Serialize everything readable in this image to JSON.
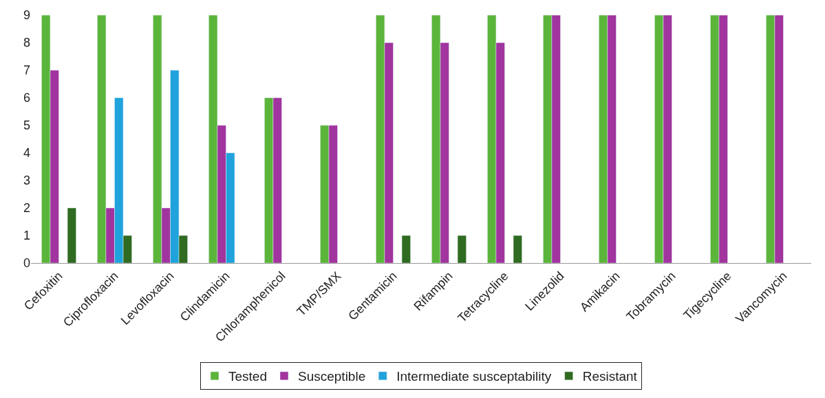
{
  "chart_data": {
    "type": "bar",
    "categories": [
      "Cefoxitin",
      "Ciprofloxacin",
      "Levofloxacin",
      "Clindamicin",
      "Chloramphenicol",
      "TMP/SMX",
      "Gentamicin",
      "Rifampin",
      "Tetracycline",
      "Linezolid",
      "Amikacin",
      "Tobramycin",
      "Tigecycline",
      "Vancomycin"
    ],
    "series": [
      {
        "name": "Tested",
        "color": "#5bb53a",
        "values": [
          9,
          9,
          9,
          9,
          6,
          5,
          9,
          9,
          9,
          9,
          9,
          9,
          9,
          9
        ]
      },
      {
        "name": "Susceptible",
        "color": "#a1349f",
        "values": [
          7,
          2,
          2,
          5,
          6,
          5,
          8,
          8,
          8,
          9,
          9,
          9,
          9,
          9
        ]
      },
      {
        "name": "Intermediate susceptability",
        "color": "#20a3dc",
        "values": [
          null,
          6,
          7,
          4,
          null,
          null,
          null,
          null,
          null,
          null,
          null,
          null,
          null,
          null
        ]
      },
      {
        "name": "Resistant",
        "color": "#2f6b20",
        "values": [
          2,
          1,
          1,
          null,
          null,
          null,
          1,
          1,
          1,
          null,
          null,
          null,
          null,
          null
        ]
      }
    ],
    "ylim": [
      0,
      9
    ],
    "yticks": [
      0,
      1,
      2,
      3,
      4,
      5,
      6,
      7,
      8,
      9
    ],
    "legend": "bottom"
  }
}
